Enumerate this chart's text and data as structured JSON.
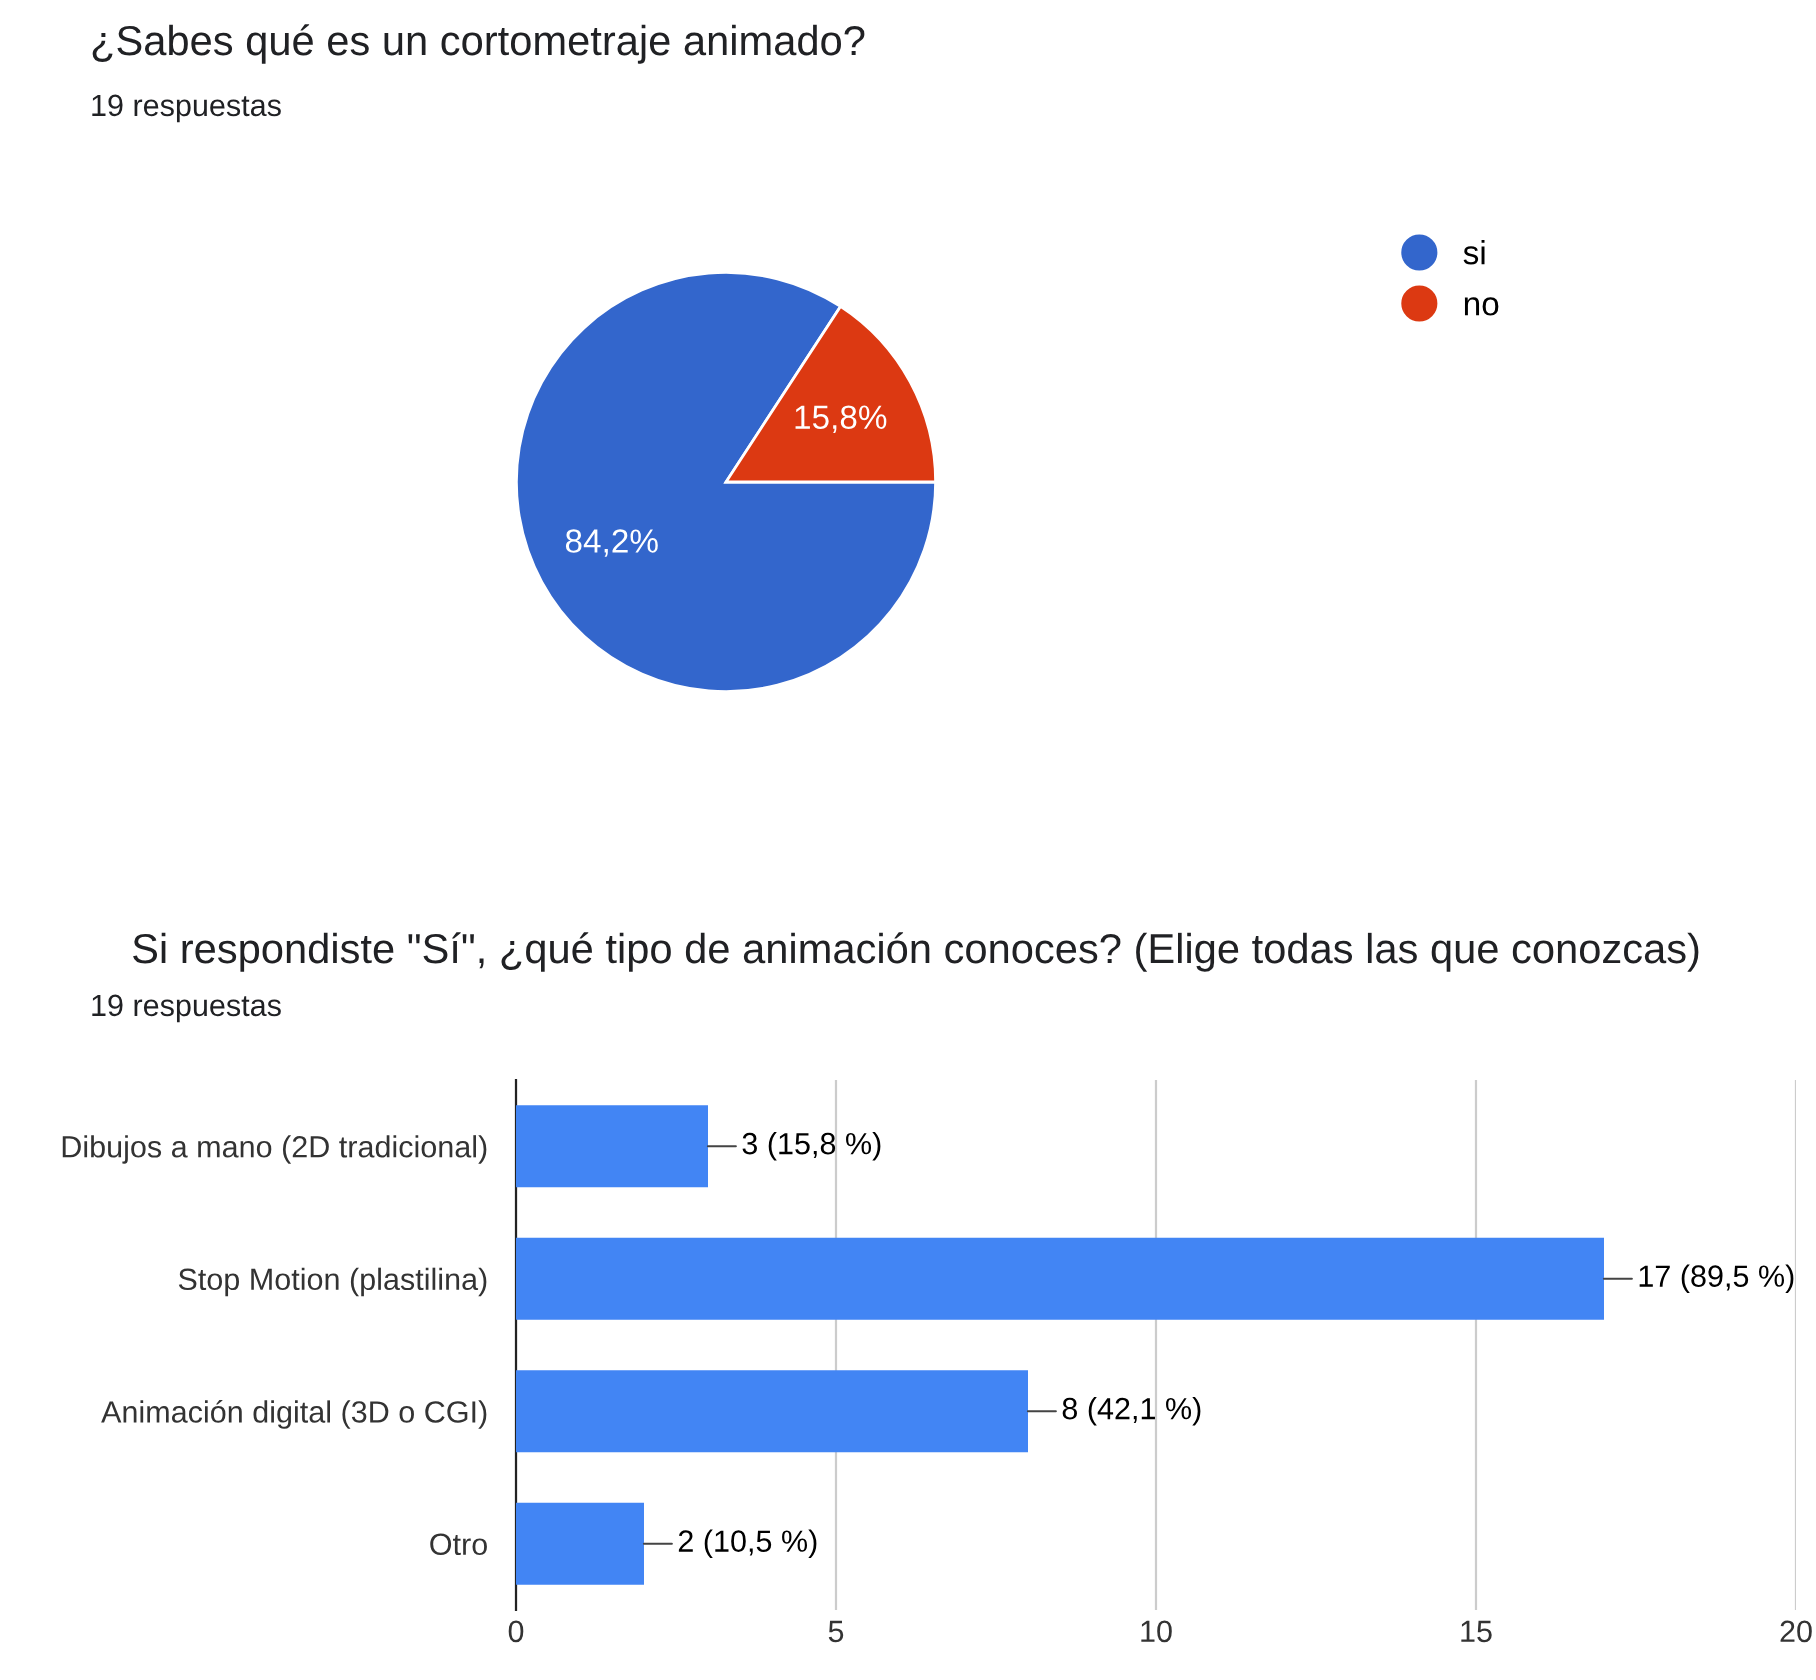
{
  "chart_data": [
    {
      "type": "pie",
      "title": "¿Sabes qué es un cortometraje animado?",
      "subtitle": "19 respuestas",
      "categories": [
        "si",
        "no"
      ],
      "values": [
        84.2,
        15.8
      ],
      "colors": [
        "#3366cc",
        "#dc3912"
      ],
      "value_labels": [
        "84,2%",
        "15,8%"
      ],
      "legend": "right"
    },
    {
      "type": "bar",
      "orientation": "horizontal",
      "title": "Si respondiste \"Sí\", ¿qué tipo de animación conoces? (Elige todas las que conozcas)",
      "subtitle": "19 respuestas",
      "categories": [
        "Dibujos a mano (2D tradicional)",
        "Stop Motion (plastilina)",
        "Animación digital (3D o CGI)",
        "Otro"
      ],
      "values": [
        3,
        17,
        8,
        2
      ],
      "color": "#4285f4",
      "value_labels": [
        "3 (15,8 %)",
        "17 (89,5 %)",
        "8 (42,1 %)",
        "2 (10,5 %)"
      ],
      "xlim": [
        0,
        20
      ],
      "xticks": [
        0,
        5,
        10,
        15,
        20
      ],
      "grid": "x"
    }
  ]
}
